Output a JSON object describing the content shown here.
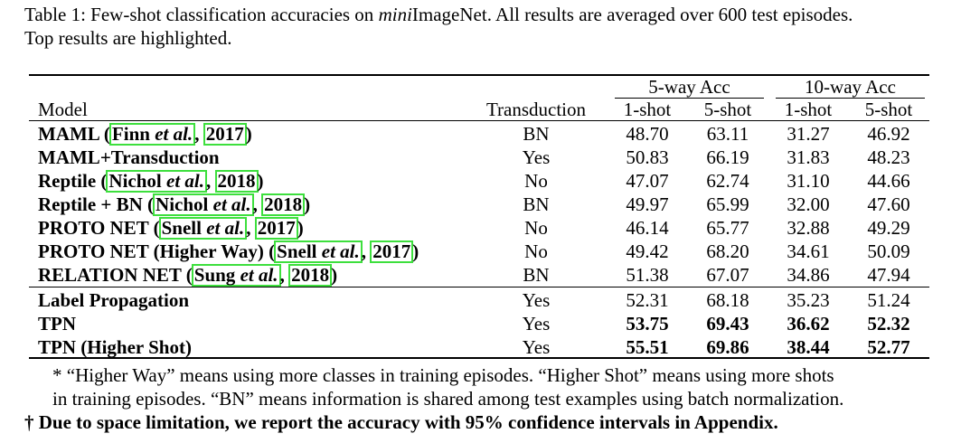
{
  "caption": {
    "prefix": "Table 1: Few-shot classification accuracies on ",
    "italic": "mini",
    "rest": "ImageNet.  All results are averaged over 600 test episodes.",
    "line2": "Top results are highlighted."
  },
  "header": {
    "model": "Model",
    "transduction": "Transduction",
    "group1": "5-way Acc",
    "group2": "10-way Acc",
    "sub": [
      "1-shot",
      "5-shot",
      "1-shot",
      "5-shot"
    ]
  },
  "rows": [
    {
      "name": "MAML (",
      "author": "Finn",
      "etal": " et al.",
      "sep": ", ",
      "year": "2017",
      "close": ")",
      "transduction": "BN",
      "values": [
        "48.70",
        "63.11",
        "31.27",
        "46.92"
      ],
      "bold": [
        false,
        false,
        false,
        false
      ]
    },
    {
      "name": "MAML+Transduction",
      "transduction": "Yes",
      "values": [
        "50.83",
        "66.19",
        "31.83",
        "48.23"
      ],
      "bold": [
        false,
        false,
        false,
        false
      ]
    },
    {
      "name": "Reptile (",
      "author": "Nichol",
      "etal": " et al.",
      "sep": ", ",
      "year": "2018",
      "close": ")",
      "transduction": "No",
      "values": [
        "47.07",
        "62.74",
        "31.10",
        "44.66"
      ],
      "bold": [
        false,
        false,
        false,
        false
      ]
    },
    {
      "name": "Reptile + BN (",
      "author": "Nichol",
      "etal": " et al.",
      "sep": ", ",
      "year": "2018",
      "close": ")",
      "transduction": "BN",
      "values": [
        "49.97",
        "65.99",
        "32.00",
        "47.60"
      ],
      "bold": [
        false,
        false,
        false,
        false
      ]
    },
    {
      "name": "PROTO NET (",
      "author": "Snell",
      "etal": " et al.",
      "sep": ", ",
      "year": "2017",
      "close": ")",
      "transduction": "No",
      "values": [
        "46.14",
        "65.77",
        "32.88",
        "49.29"
      ],
      "bold": [
        false,
        false,
        false,
        false
      ]
    },
    {
      "name": "PROTO NET (Higher Way) (",
      "author": "Snell",
      "etal": " et al.",
      "sep": ", ",
      "year": "2017",
      "close": ")",
      "transduction": "No",
      "values": [
        "49.42",
        "68.20",
        "34.61",
        "50.09"
      ],
      "bold": [
        false,
        false,
        false,
        false
      ]
    },
    {
      "name": "RELATION NET (",
      "author": "Sung",
      "etal": " et al.",
      "sep": ", ",
      "year": "2018",
      "close": ")",
      "transduction": "BN",
      "values": [
        "51.38",
        "67.07",
        "34.86",
        "47.94"
      ],
      "bold": [
        false,
        false,
        false,
        false
      ]
    },
    {
      "name": "Label Propagation",
      "transduction": "Yes",
      "values": [
        "52.31",
        "68.18",
        "35.23",
        "51.24"
      ],
      "bold": [
        false,
        false,
        false,
        false
      ]
    },
    {
      "name": "TPN",
      "transduction": "Yes",
      "values": [
        "53.75",
        "69.43",
        "36.62",
        "52.32"
      ],
      "bold": [
        true,
        true,
        true,
        true
      ]
    },
    {
      "name": "TPN (Higher Shot)",
      "transduction": "Yes",
      "values": [
        "55.51",
        "69.86",
        "38.44",
        "52.77"
      ],
      "bold": [
        true,
        true,
        true,
        true
      ]
    }
  ],
  "notes": {
    "line1": "* “Higher Way” means using more classes in training episodes. “Higher Shot” means using more shots",
    "line2": "in training episodes. “BN” means information is shared among test examples using batch normalization.",
    "line3": "† Due to space limitation, we report the accuracy with 95% confidence intervals in Appendix."
  }
}
